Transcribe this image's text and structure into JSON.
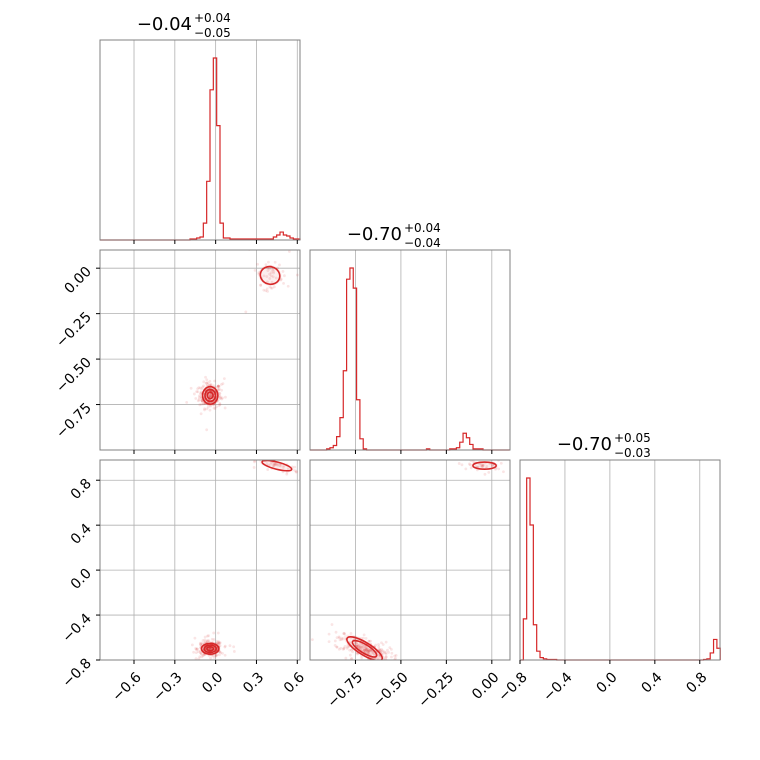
{
  "chart_data": {
    "type": "corner",
    "color": "#d62728",
    "parameters": [
      {
        "title_main": "−0.04",
        "title_plus": "+0.04",
        "title_minus": "−0.05",
        "range": [
          -0.85,
          0.62
        ],
        "ticks": [
          {
            "v": -0.6,
            "label": "−0.6"
          },
          {
            "v": -0.3,
            "label": "−0.3"
          },
          {
            "v": 0.0,
            "label": "0.0"
          },
          {
            "v": 0.3,
            "label": "0.3"
          },
          {
            "v": 0.6,
            "label": "0.6"
          }
        ],
        "hist": {
          "edges_start": -0.85,
          "bin_width": 0.0245,
          "counts": [
            0,
            0,
            0,
            0,
            0,
            0,
            0,
            0,
            0,
            0,
            0,
            0,
            0,
            0,
            0,
            0,
            0,
            0,
            0,
            0,
            0,
            0,
            0,
            0,
            0,
            0,
            0,
            1,
            1,
            2,
            3,
            17,
            59,
            151,
            183,
            115,
            17,
            2,
            2,
            1,
            1,
            1,
            1,
            1,
            1,
            1,
            1,
            1,
            1,
            1,
            1,
            1,
            3,
            5,
            8,
            5,
            4,
            2,
            1,
            1
          ]
        }
      },
      {
        "title_main": "−0.70",
        "title_plus": "+0.04",
        "title_minus": "−0.04",
        "range": [
          -1.0,
          0.1
        ],
        "ticks": [
          {
            "v": -0.75,
            "label": "−0.75"
          },
          {
            "v": -0.5,
            "label": "−0.50"
          },
          {
            "v": -0.25,
            "label": "−0.25"
          },
          {
            "v": 0.0,
            "label": "0.00"
          }
        ],
        "hist": {
          "edges_start": -1.0,
          "bin_width": 0.0183,
          "counts": [
            0,
            0,
            0,
            0,
            0,
            1,
            2,
            4,
            12,
            29,
            71,
            153,
            163,
            145,
            45,
            10,
            1,
            0,
            0,
            0,
            0,
            0,
            0,
            0,
            0,
            0,
            0,
            0,
            0,
            0,
            0,
            0,
            0,
            0,
            0,
            1,
            0,
            0,
            0,
            0,
            0,
            0,
            1,
            1,
            2,
            7,
            15,
            11,
            5,
            1,
            1,
            1,
            0,
            0,
            0,
            0,
            0,
            0,
            0,
            0
          ]
        }
      },
      {
        "title_main": "−0.70",
        "title_plus": "+0.05",
        "title_minus": "−0.03",
        "range": [
          -0.8,
          0.98
        ],
        "ticks": [
          {
            "v": -0.8,
            "label": "−0.8"
          },
          {
            "v": -0.4,
            "label": "−0.4"
          },
          {
            "v": 0.0,
            "label": "0.0"
          },
          {
            "v": 0.4,
            "label": "0.4"
          },
          {
            "v": 0.8,
            "label": "0.8"
          }
        ],
        "hist": {
          "edges_start": -0.8,
          "bin_width": 0.0297,
          "counts": [
            0,
            70,
            310,
            230,
            60,
            15,
            4,
            2,
            1,
            1,
            1,
            0,
            0,
            0,
            0,
            0,
            0,
            0,
            0,
            0,
            0,
            0,
            0,
            0,
            0,
            0,
            0,
            0,
            0,
            0,
            0,
            0,
            0,
            0,
            0,
            0,
            0,
            0,
            0,
            0,
            0,
            0,
            0,
            0,
            0,
            0,
            0,
            0,
            0,
            0,
            0,
            0,
            0,
            0,
            0,
            1,
            2,
            12,
            35,
            20
          ]
        }
      }
    ],
    "clusters": {
      "1_0": [
        {
          "cx": -0.04,
          "cy": -0.7,
          "sx": 0.035,
          "sy": 0.03,
          "rot": 0,
          "n": 260,
          "contours": 3
        },
        {
          "cx": 0.4,
          "cy": -0.04,
          "sx": 0.045,
          "sy": 0.03,
          "rot": -0.3,
          "n": 50,
          "contours": 1
        }
      ],
      "2_0": [
        {
          "cx": -0.04,
          "cy": -0.7,
          "sx": 0.04,
          "sy": 0.03,
          "rot": 0,
          "n": 260,
          "contours": 3
        },
        {
          "cx": 0.45,
          "cy": 0.93,
          "sx": 0.07,
          "sy": 0.02,
          "rot": -0.25,
          "n": 50,
          "contours": 1
        }
      ],
      "2_1": [
        {
          "cx": -0.7,
          "cy": -0.7,
          "sx": 0.07,
          "sy": 0.035,
          "rot": -0.55,
          "n": 260,
          "contours": 2
        },
        {
          "cx": -0.04,
          "cy": 0.93,
          "sx": 0.04,
          "sy": 0.02,
          "rot": 0,
          "n": 45,
          "contours": 1
        }
      ]
    }
  }
}
